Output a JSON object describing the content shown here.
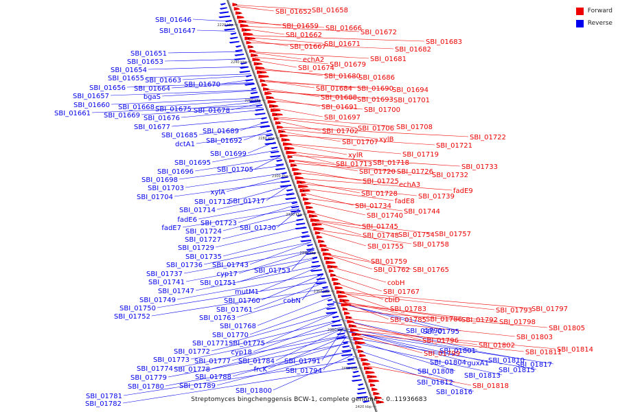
{
  "legend": {
    "forward_label": "Forward",
    "reverse_label": "Reverse",
    "forward_color": "#ee0000",
    "reverse_color": "#0000ee"
  },
  "caption": "Streptomyces bingchenggensis BCW-1, complete genome, - 0..11936683",
  "scale_ticks": [
    "2220 kbp",
    "2240 kbp",
    "2260 kbp",
    "2280 kbp",
    "2300 kbp",
    "2320 kbp",
    "2340 kbp",
    "2360 kbp",
    "2380 kbp",
    "2400 kbp",
    "2420 kbp"
  ],
  "reverse_labels": [
    "SBI_01646",
    "SBI_01647",
    "SBI_01651",
    "SBI_01653",
    "SBI_01654",
    "SBI_01655",
    "SBI_01663",
    "SBI_01656",
    "SBI_01664",
    "SBI_01670",
    "SBI_01657",
    "bgaS",
    "SBI_01660",
    "SBI_01668",
    "SBI_01675",
    "SBI_01678",
    "SBI_01661",
    "SBI_01669",
    "SBI_01676",
    "SBI_01677",
    "SBI_01689",
    "SBI_01685",
    "SBI_01692",
    "dctA1",
    "SBI_01699",
    "SBI_01695",
    "SBI_01705",
    "SBI_01696",
    "SBI_01698",
    "SBI_01703",
    "xylA",
    "SBI_01704",
    "SBI_01712",
    "SBI_01717",
    "SBI_01714",
    "fadE6",
    "SBI_01723",
    "fadE7",
    "SBI_01724",
    "SBI_01730",
    "SBI_01727",
    "SBI_01729",
    "SBI_01735",
    "SBI_01736",
    "SBI_01743",
    "SBI_01737",
    "cyp17",
    "SBI_01753",
    "SBI_01741",
    "SBI_01751",
    "SBI_01747",
    "mutM1",
    "SBI_01749",
    "SBI_01760",
    "SBI_01750",
    "cobN",
    "SBI_01761",
    "SBI_01752",
    "SBI_01763",
    "SBI_01768",
    "SBI_01770",
    "SBI_01771",
    "SBI_01775",
    "SBI_01772",
    "cyp18",
    "SBI_01773",
    "SBI_01777",
    "SBI_01784",
    "SBI_01791",
    "SBI_01774",
    "SBI_01778",
    "frcK",
    "SBI_01794",
    "SBI_01779",
    "SBI_01788",
    "SBI_01780",
    "SBI_01789",
    "SBI_01800",
    "SBI_01781",
    "SBI_01782",
    "SBI_01790",
    "SBI_01795",
    "SBI_01801",
    "SBI_01804",
    "guxA1",
    "SBI_01810",
    "SBI_01817",
    "SBI_01808",
    "SBI_01813",
    "SBI_01815",
    "SBI_01812",
    "SBI_01816"
  ],
  "forward_labels": [
    "SBI_01652",
    "SBI_01658",
    "SBI_01659",
    "SBI_01666",
    "SBI_01662",
    "SBI_01672",
    "SBI_01667",
    "SBI_01671",
    "SBI_01683",
    "SBI_01682",
    "echA2",
    "SBI_01681",
    "SBI_01674",
    "SBI_01679",
    "SBI_01680",
    "SBI_01686",
    "SBI_01684",
    "SBI_01690",
    "SBI_01694",
    "SBI_01688",
    "SBI_01693",
    "SBI_01701",
    "SBI_01691",
    "SBI_01700",
    "SBI_01697",
    "SBI_01706",
    "SBI_01708",
    "SBI_01702",
    "SBI_01707",
    "xylB",
    "SBI_01722",
    "SBI_01721",
    "SBI_01719",
    "xylR",
    "SBI_01718",
    "SBI_01713",
    "SBI_01720",
    "SBI_01726",
    "SBI_01732",
    "SBI_01733",
    "SBI_01725",
    "echA3",
    "fadE9",
    "SBI_01728",
    "SBI_01739",
    "fadE8",
    "SBI_01734",
    "SBI_01744",
    "SBI_01740",
    "SBI_01745",
    "SBI_01754",
    "SBI_01757",
    "SBI_01748",
    "SBI_01755",
    "SBI_01758",
    "SBI_01759",
    "SBI_01762",
    "SBI_01765",
    "cobH",
    "SBI_01767",
    "cbiD",
    "SBI_01783",
    "SBI_01793",
    "SBI_01797",
    "SBI_01785",
    "SBI_01786",
    "SBI_01792",
    "SBI_01798",
    "SBI_01805",
    "SBI_01796",
    "SBI_01803",
    "SBI_01802",
    "SBI_01799",
    "SBI_01811",
    "SBI_01814",
    "SBI_01818"
  ]
}
